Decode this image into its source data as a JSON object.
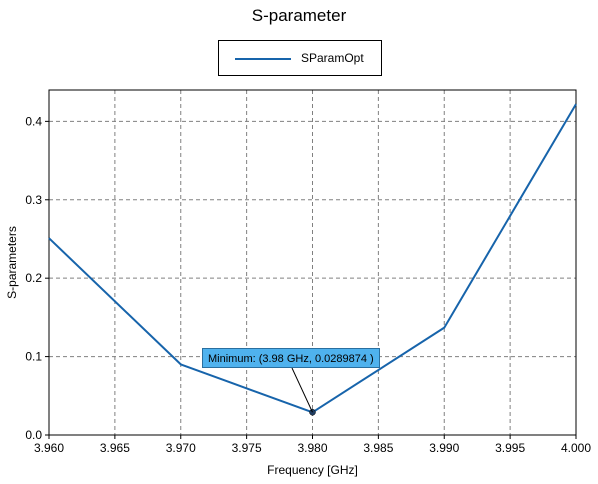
{
  "chart_data": {
    "type": "line",
    "title": "S-parameter",
    "xlabel": "Frequency [GHz]",
    "ylabel": "S-parameters",
    "xlim": [
      3.96,
      4.0
    ],
    "ylim": [
      0.0,
      0.44
    ],
    "x_ticks": [
      "3.960",
      "3.965",
      "3.970",
      "3.975",
      "3.980",
      "3.985",
      "3.990",
      "3.995",
      "4.000"
    ],
    "y_ticks": [
      "0.0",
      "0.1",
      "0.2",
      "0.3",
      "0.4"
    ],
    "grid": true,
    "legend_position": "top-center",
    "series": [
      {
        "name": "SParamOpt",
        "color": "#1764ab",
        "x": [
          3.96,
          3.97,
          3.98,
          3.99,
          4.0
        ],
        "y": [
          0.251,
          0.09,
          0.0289874,
          0.137,
          0.422
        ]
      }
    ],
    "annotation": {
      "text": "Minimum: (3.98 GHz, 0.0289874 )",
      "x": 3.98,
      "y": 0.0289874
    }
  }
}
